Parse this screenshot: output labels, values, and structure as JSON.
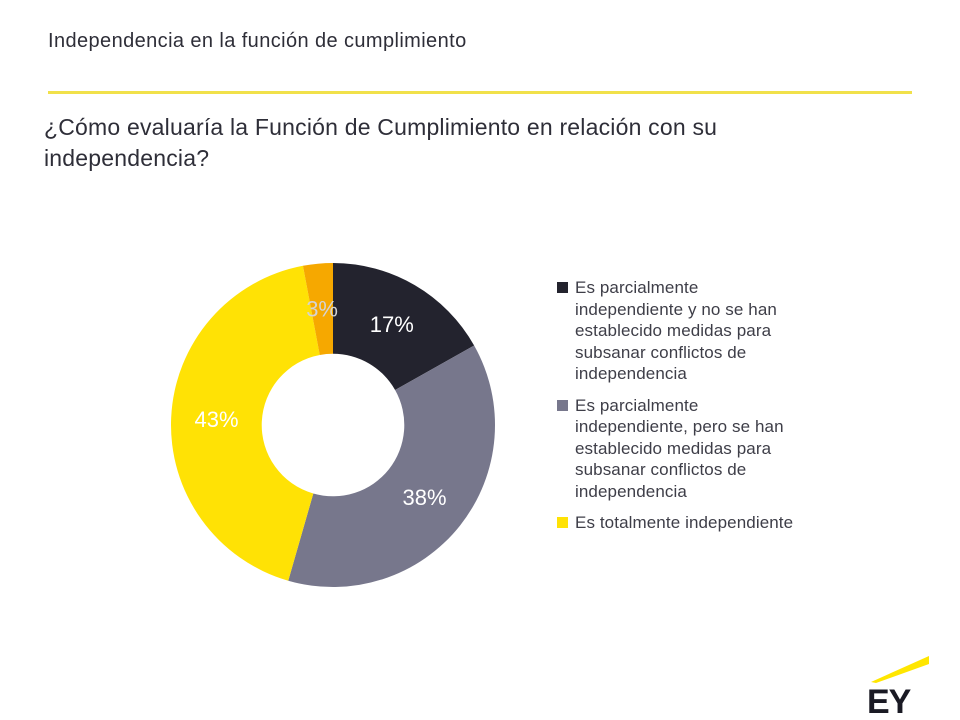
{
  "slide": {
    "title": "Independencia en la función de cumplimiento",
    "question": "¿Cómo evaluaría la Función de Cumplimiento en relación con su independencia?",
    "logo_text": "EY"
  },
  "colors": {
    "brand_yellow": "#ffe600",
    "divider_yellow": "#f1e14a",
    "text_dark": "#2e2e38",
    "legend_text": "#3e3e48"
  },
  "chart_data": {
    "type": "pie",
    "subtype": "donut",
    "title": "",
    "legend_position": "right",
    "direction": "clockwise",
    "start_angle_deg": 0,
    "inner_radius_ratio": 0.44,
    "slices": [
      {
        "value": 17,
        "label": "17%",
        "color": "#23232e",
        "label_color": "#ffffff",
        "legend": "Es parcialmente\nindependiente y no se han\nestablecido medidas para\nsubsanar conflictos de\nindependencia"
      },
      {
        "value": 38,
        "label": "38%",
        "color": "#77778c",
        "label_color": "#ffffff",
        "legend": "Es parcialmente\nindependiente, pero se han\nestablecido medidas para\nsubsanar conflictos de\nindependencia"
      },
      {
        "value": 43,
        "label": "43%",
        "color": "#ffe205",
        "label_color": "#ffffff",
        "legend": "Es totalmente independiente"
      },
      {
        "value": 3,
        "label": "3%",
        "color": "#f6a800",
        "label_color": "#d4d4d4",
        "legend": null
      }
    ]
  }
}
